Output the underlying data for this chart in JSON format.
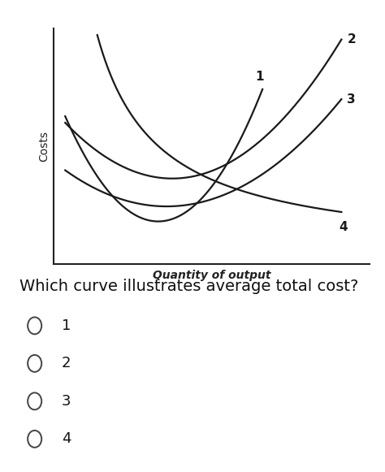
{
  "ylabel": "Costs",
  "xlabel": "Quantity of output",
  "background_color": "#ffffff",
  "curve_color": "#1a1a1a",
  "question_text": "Which curve illustrates average total cost?",
  "options": [
    "1",
    "2",
    "3",
    "4"
  ],
  "xlabel_fontsize": 10,
  "ylabel_fontsize": 10,
  "question_fontsize": 14,
  "option_fontsize": 13,
  "curve_linewidth": 1.6,
  "label_fontsize": 11
}
